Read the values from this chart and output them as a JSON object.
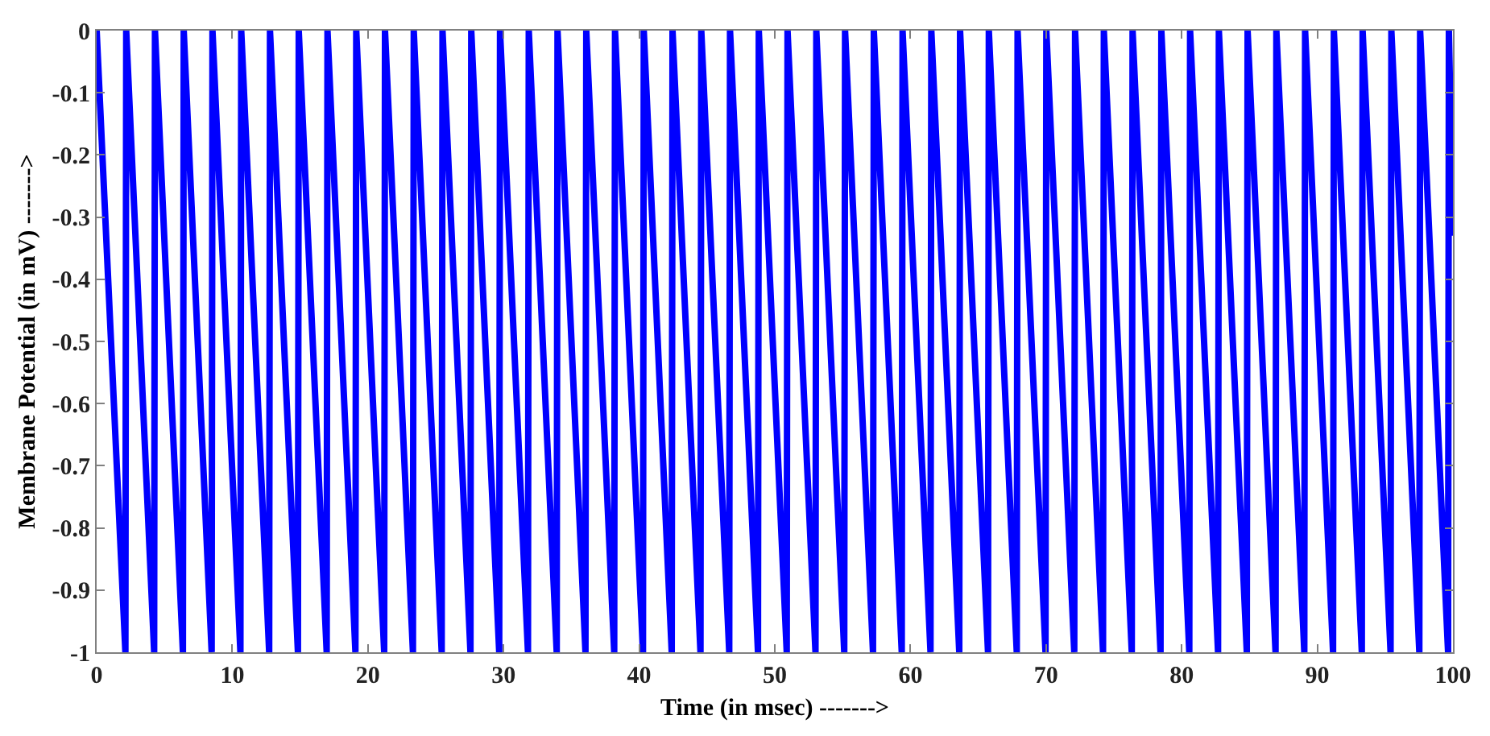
{
  "chart_data": {
    "type": "line",
    "xlabel": "Time (in msec) ------->",
    "ylabel": "Membrane Potential (in mV) ------->",
    "x": [
      0,
      2.12,
      2.18,
      4.24,
      4.3,
      6.36,
      6.42,
      8.48,
      8.54,
      10.6,
      10.66,
      12.72,
      12.78,
      14.84,
      14.9,
      16.96,
      17.02,
      19.08,
      19.14,
      21.2,
      21.26,
      23.32,
      23.38,
      25.44,
      25.5,
      27.56,
      27.62,
      29.68,
      29.74,
      31.8,
      31.86,
      33.92,
      33.98,
      36.04,
      36.1,
      38.16,
      38.22,
      40.28,
      40.34,
      42.4,
      42.46,
      44.52,
      44.58,
      46.64,
      46.7,
      48.76,
      48.82,
      50.88,
      50.94,
      53.0,
      53.06,
      55.12,
      55.18,
      57.24,
      57.3,
      59.36,
      59.42,
      61.48,
      61.54,
      63.6,
      63.66,
      65.72,
      65.78,
      67.84,
      67.9,
      69.96,
      70.02,
      72.08,
      72.14,
      74.2,
      74.26,
      76.32,
      76.38,
      78.44,
      78.5,
      80.56,
      80.62,
      82.68,
      82.74,
      84.8,
      84.86,
      86.92,
      86.98,
      89.04,
      89.1,
      91.16,
      91.22,
      93.28,
      93.34,
      95.4,
      95.46,
      97.52,
      97.58,
      99.64,
      99.7,
      100
    ],
    "series": [
      {
        "color": "#0000ff",
        "values": [
          0,
          -1,
          0,
          -1,
          0,
          -1,
          0,
          -1,
          0,
          -1,
          0,
          -1,
          0,
          -1,
          0,
          -1,
          0,
          -1,
          0,
          -1,
          0,
          -1,
          0,
          -1,
          0,
          -1,
          0,
          -1,
          0,
          -1,
          0,
          -1,
          0,
          -1,
          0,
          -1,
          0,
          -1,
          0,
          -1,
          0,
          -1,
          0,
          -1,
          0,
          -1,
          0,
          -1,
          0,
          -1,
          0,
          -1,
          0,
          -1,
          0,
          -1,
          0,
          -1,
          0,
          -1,
          0,
          -1,
          0,
          -1,
          0,
          -1,
          0,
          -1,
          0,
          -1,
          0,
          -1,
          0,
          -1,
          0,
          -1,
          0,
          -1,
          0,
          -1,
          0,
          -1,
          0,
          -1,
          0,
          -1,
          0,
          -1,
          0,
          -1,
          0,
          -1,
          0,
          -1,
          0,
          -0.33
        ]
      }
    ],
    "xlim": [
      0,
      100
    ],
    "xticks": [
      0,
      10,
      20,
      30,
      40,
      50,
      60,
      70,
      80,
      90,
      100
    ],
    "ylim": [
      -1,
      0
    ],
    "yticks": [
      -1,
      -0.9,
      -0.8,
      -0.7,
      -0.6,
      -0.5,
      -0.4,
      -0.3,
      -0.2,
      -0.1,
      0
    ],
    "grid": false,
    "marker": "none",
    "line_style": "solid"
  }
}
